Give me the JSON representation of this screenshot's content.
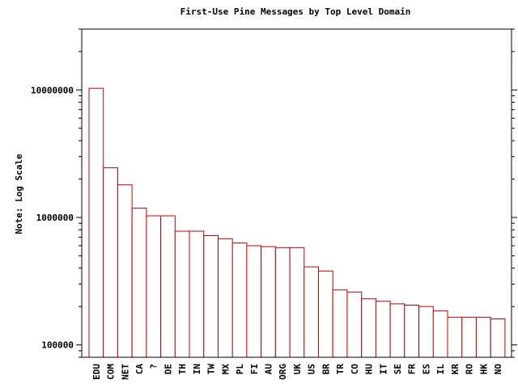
{
  "chart_data": {
    "type": "bar",
    "title": "First-Use Pine Messages by Top Level Domain",
    "xlabel": "",
    "ylabel": "Note: Log Scale",
    "y_scale": "log",
    "ylim": [
      80000,
      30000000
    ],
    "y_tick_labels": [
      "100000",
      "1000000",
      "10000000"
    ],
    "y_ticks": [
      100000,
      1000000,
      10000000
    ],
    "grid": false,
    "bar_fill": "#ffffff",
    "bar_stroke": "#cc0000",
    "categories": [
      "EDU",
      "COM",
      "NET",
      "CA",
      "?",
      "DE",
      "TH",
      "IN",
      "TW",
      "MX",
      "PL",
      "FI",
      "AU",
      "ORG",
      "UK",
      "US",
      "BR",
      "TR",
      "CO",
      "HU",
      "IT",
      "SE",
      "FR",
      "ES",
      "IL",
      "KR",
      "RO",
      "HK",
      "NO"
    ],
    "values": [
      10300000,
      2450000,
      1800000,
      1180000,
      1030000,
      1030000,
      780000,
      780000,
      720000,
      680000,
      630000,
      600000,
      590000,
      580000,
      580000,
      410000,
      380000,
      270000,
      260000,
      230000,
      220000,
      210000,
      205000,
      200000,
      185000,
      165000,
      165000,
      165000,
      160000
    ]
  }
}
